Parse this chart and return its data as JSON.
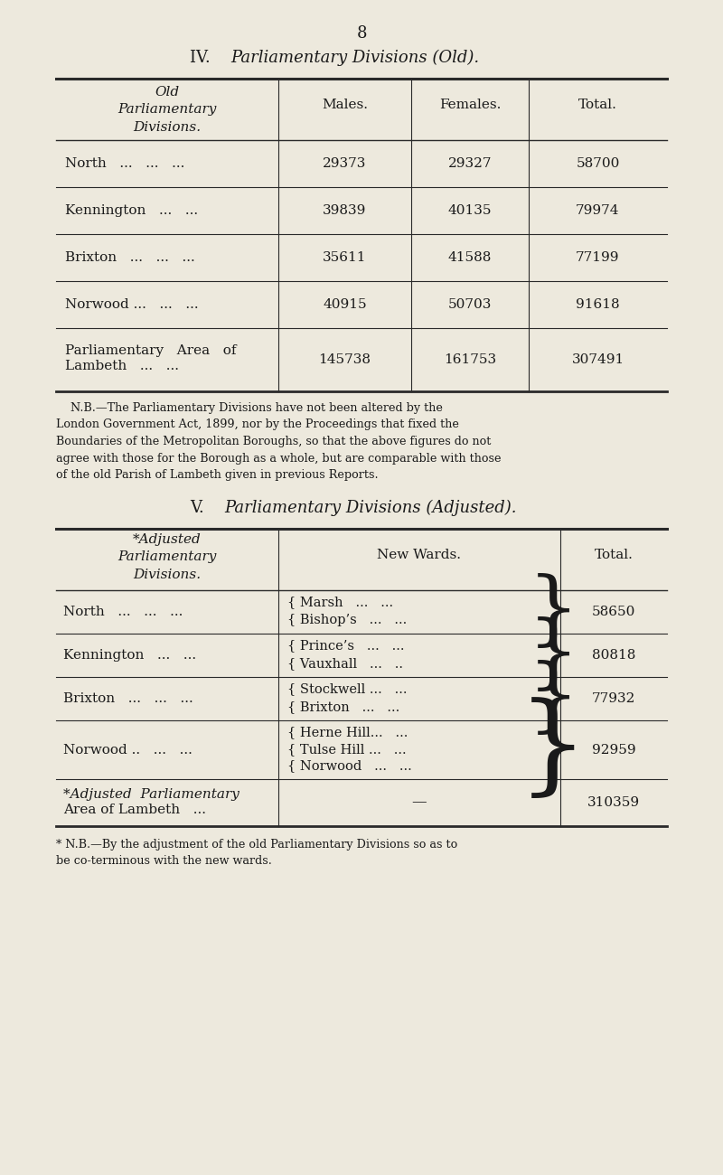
{
  "bg_color": "#ede9dd",
  "page_number": "8",
  "section_iv_title_plain": "IV.  ",
  "section_iv_title_italic": "Parliamentary Divisions (Old).",
  "section_v_title_plain": "V.  ",
  "section_v_title_italic": "Parliamentary Divisions (Adjusted).",
  "table1_rows": [
    [
      "North   ...   ...   ...",
      "29373",
      "29327",
      "58700"
    ],
    [
      "Kennington   ...   ...",
      "39839",
      "40135",
      "79974"
    ],
    [
      "Brixton   ...   ...   ...",
      "35611",
      "41588",
      "77199"
    ],
    [
      "Norwood ...   ...   ...",
      "40915",
      "50703",
      "91618"
    ],
    [
      "Parliamentary   Area   of\nLambeth   ...   ...",
      "145738",
      "161753",
      "307491"
    ]
  ],
  "table1_note": "    N.B.—The Parliamentary Divisions have not been altered by the\nLondon Government Act, 1899, nor by the Proceedings that fixed the\nBoundaries of the Metropolitan Boroughs, so that the above figures do not\nagree with those for the Borough as a whole, but are comparable with those\nof the old Parish of Lambeth given in previous Reports.",
  "table2_rows": [
    {
      "division": "North   ...   ...   ...",
      "wards": [
        [
          "{ Marsh",
          "...   ..."
        ],
        [
          "{ Bishop’s",
          "...   ..."
        ]
      ],
      "total": "58650"
    },
    {
      "division": "Kennington   ...   ...",
      "wards": [
        [
          "{ Prince’s",
          "...   ..."
        ],
        [
          "{ Vauxhall",
          "...   .."
        ]
      ],
      "total": "80818"
    },
    {
      "division": "Brixton   ...   ...   ...",
      "wards": [
        [
          "{ Stockwell ...",
          "..."
        ],
        [
          "{ Brixton",
          "...   ..."
        ]
      ],
      "total": "77932"
    },
    {
      "division": "Norwood ..   ...   ...",
      "wards": [
        [
          "{ Herne Hill...",
          "..."
        ],
        [
          "{ Tulse Hill ...",
          "..."
        ],
        [
          "{ Norwood",
          "...   ..."
        ]
      ],
      "total": "92959"
    },
    {
      "division": "*Adjusted  Parliamentary\nArea of Lambeth   ...",
      "wards": null,
      "total": "310359"
    }
  ],
  "table2_note": "* N.B.—By the adjustment of the old Parliamentary Divisions so as to\nbe co-terminous with the new wards.",
  "text_color": "#1a1a1a",
  "line_color": "#2a2a2a"
}
